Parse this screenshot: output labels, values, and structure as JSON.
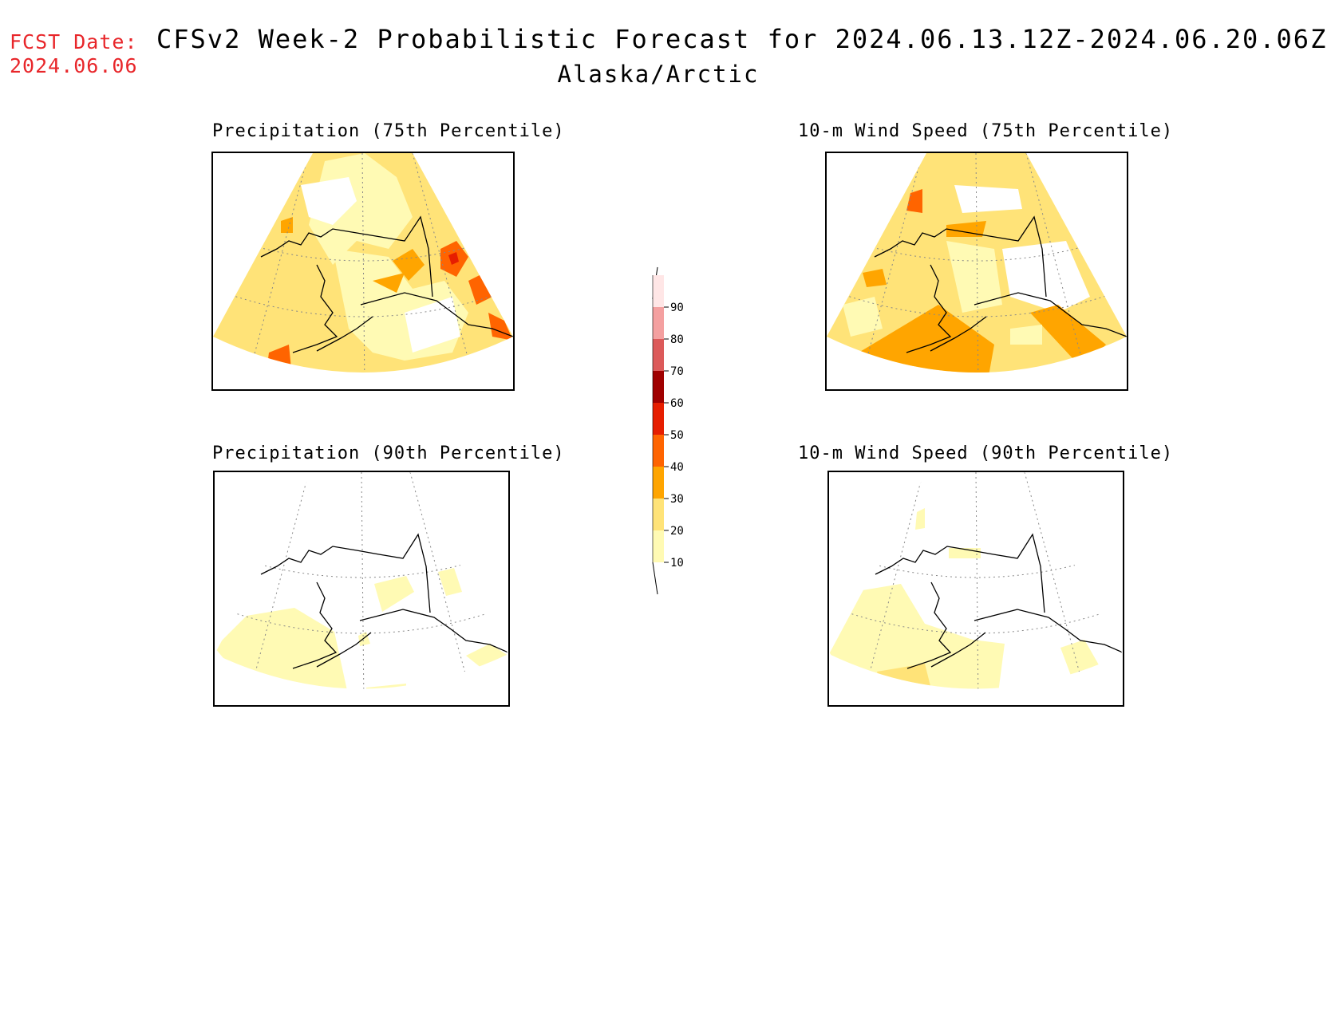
{
  "header": {
    "fcst_label": "FCST Date:",
    "fcst_date": "2024.06.06",
    "title": "CFSv2 Week-2 Probabilistic Forecast for 2024.06.13.12Z-2024.06.20.06Z",
    "subtitle": "Alaska/Arctic"
  },
  "panels": [
    {
      "title": "Precipitation (75th Percentile)"
    },
    {
      "title": "10-m Wind Speed (75th Percentile)"
    },
    {
      "title": "Precipitation (90th Percentile)"
    },
    {
      "title": "10-m Wind Speed (90th Percentile)"
    }
  ],
  "colorbar": {
    "levels": [
      {
        "label": "10",
        "color": "#fffab4"
      },
      {
        "label": "20",
        "color": "#ffe378"
      },
      {
        "label": "30",
        "color": "#ffa500"
      },
      {
        "label": "40",
        "color": "#ff6400"
      },
      {
        "label": "50",
        "color": "#e61e00"
      },
      {
        "label": "60",
        "color": "#a00000"
      },
      {
        "label": "70",
        "color": "#dc5a5a"
      },
      {
        "label": "80",
        "color": "#f4a0a0"
      },
      {
        "label": "90",
        "color": "#ffe6e6"
      }
    ]
  }
}
